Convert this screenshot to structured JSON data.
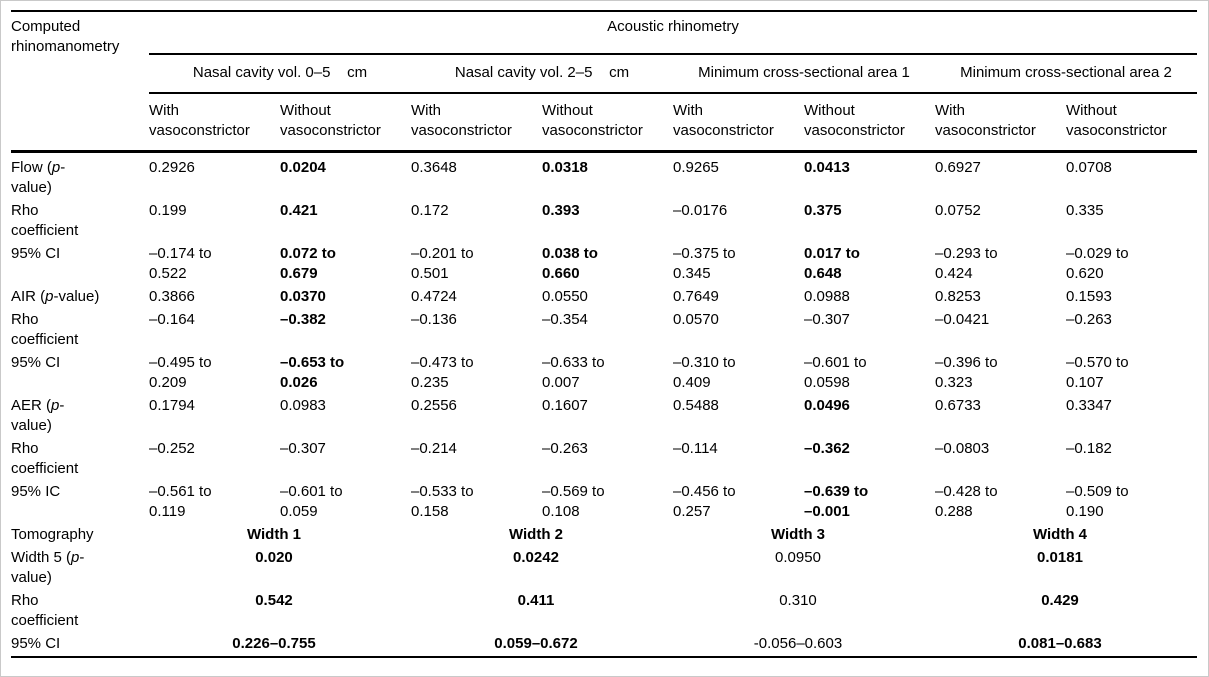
{
  "colors": {
    "text": "#000000",
    "rules": "#000000",
    "frame": "#c9c9c9"
  },
  "table": {
    "corner_label": "Computed\nrhinomanometry",
    "top_header": "Acoustic rhinometry",
    "groups": [
      "Nasal cavity vol. 0–5    cm",
      "Nasal cavity vol. 2–5    cm",
      "Minimum cross-sectional area 1",
      "Minimum cross-sectional area 2"
    ],
    "subheaders": [
      "With\nvasoconstrictor",
      "Without\nvasoconstrictor",
      "With\nvasoconstrictor",
      "Without\nvasoconstrictor",
      "With\nvasoconstrictor",
      "Without\nvasoconstrictor",
      "With\nvasoconstrictor",
      "Without\nvasoconstrictor"
    ],
    "rows": [
      {
        "label": "Flow (p-\nvalue)",
        "cells": [
          "0.2926",
          "0.0204",
          "0.3648",
          "0.0318",
          "0.9265",
          "0.0413",
          "0.6927",
          "0.0708"
        ],
        "bold": [
          0,
          1,
          0,
          1,
          0,
          1,
          0,
          0
        ]
      },
      {
        "label": "Rho\ncoefficient",
        "cells": [
          "0.199",
          "0.421",
          "0.172",
          "0.393",
          "–0.0176",
          "0.375",
          "0.0752",
          "0.335"
        ],
        "bold": [
          0,
          1,
          0,
          1,
          0,
          1,
          0,
          0
        ]
      },
      {
        "label": "95% CI",
        "cells": [
          "–0.174 to\n0.522",
          "0.072 to\n0.679",
          "–0.201 to\n0.501",
          "0.038 to\n0.660",
          "–0.375 to\n0.345",
          "0.017 to\n0.648",
          "–0.293 to\n0.424",
          "–0.029 to\n0.620"
        ],
        "bold": [
          0,
          1,
          0,
          1,
          0,
          1,
          0,
          0
        ]
      },
      {
        "label": "AIR (p-value)",
        "cells": [
          "0.3866",
          "0.0370",
          "0.4724",
          "0.0550",
          "0.7649",
          "0.0988",
          "0.8253",
          "0.1593"
        ],
        "bold": [
          0,
          1,
          0,
          0,
          0,
          0,
          0,
          0
        ]
      },
      {
        "label": "Rho\ncoefficient",
        "cells": [
          "–0.164",
          "–0.382",
          "–0.136",
          "–0.354",
          "0.0570",
          "–0.307",
          "–0.0421",
          "–0.263"
        ],
        "bold": [
          0,
          1,
          0,
          0,
          0,
          0,
          0,
          0
        ]
      },
      {
        "label": "95% CI",
        "cells": [
          "–0.495 to\n0.209",
          "–0.653 to\n0.026",
          "–0.473 to\n0.235",
          "–0.633 to\n0.007",
          "–0.310 to\n0.409",
          "–0.601 to\n0.0598",
          "–0.396 to\n0.323",
          "–0.570 to\n0.107"
        ],
        "bold": [
          0,
          1,
          0,
          0,
          0,
          0,
          0,
          0
        ]
      },
      {
        "label": "AER (p-\nvalue)",
        "cells": [
          "0.1794",
          "0.0983",
          "0.2556",
          "0.1607",
          "0.5488",
          "0.0496",
          "0.6733",
          "0.3347"
        ],
        "bold": [
          0,
          0,
          0,
          0,
          0,
          1,
          0,
          0
        ]
      },
      {
        "label": "Rho\ncoefficient",
        "cells": [
          "–0.252",
          "–0.307",
          "–0.214",
          "–0.263",
          "–0.114",
          "–0.362",
          "–0.0803",
          "–0.182"
        ],
        "bold": [
          0,
          0,
          0,
          0,
          0,
          1,
          0,
          0
        ]
      },
      {
        "label": "95% IC",
        "cells": [
          "–0.561 to\n0.119",
          "–0.601 to\n0.059",
          "–0.533 to\n0.158",
          "–0.569 to\n0.108",
          "–0.456 to\n0.257",
          "–0.639 to\n–0.001",
          "–0.428 to\n0.288",
          "–0.509 to\n0.190"
        ],
        "bold": [
          0,
          0,
          0,
          0,
          0,
          1,
          0,
          0
        ]
      }
    ],
    "merged_rows": [
      {
        "label": "Tomography",
        "cells": [
          "Width 1",
          "Width 2",
          "Width 3",
          "Width 4"
        ],
        "bold": [
          1,
          1,
          1,
          1
        ]
      },
      {
        "label": "Width 5 (p-\nvalue)",
        "cells": [
          "0.020",
          "0.0242",
          "0.0950",
          "0.0181"
        ],
        "bold": [
          1,
          1,
          0,
          1
        ]
      },
      {
        "label": "Rho\ncoefficient",
        "cells": [
          "0.542",
          "0.411",
          "0.310",
          "0.429"
        ],
        "bold": [
          1,
          1,
          0,
          1
        ]
      },
      {
        "label": "95% CI",
        "cells": [
          "0.226–0.755",
          "0.059–0.672",
          "-0.056–0.603",
          "0.081–0.683"
        ],
        "bold": [
          1,
          1,
          0,
          1
        ]
      }
    ]
  }
}
